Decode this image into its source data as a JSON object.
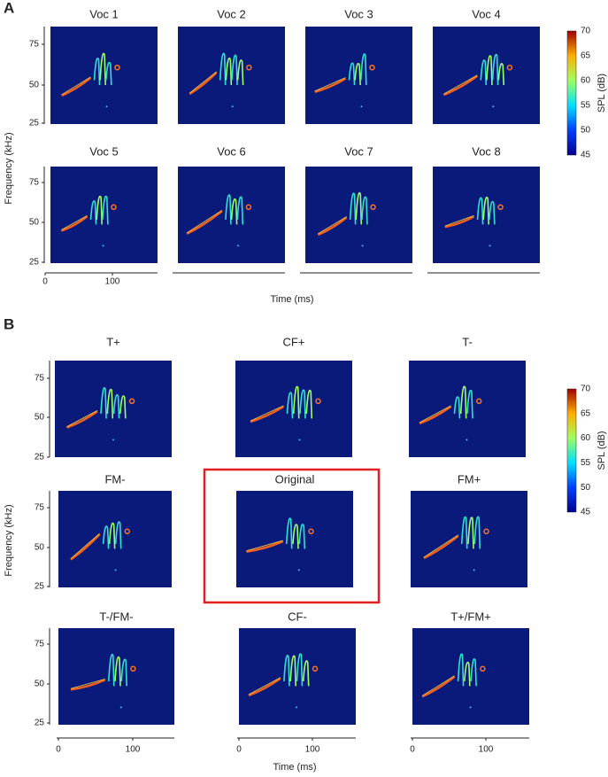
{
  "panel_a": {
    "label": "A",
    "y_label": "Frequency (kHz)",
    "x_label": "Time (ms)",
    "yticks": [
      "75",
      "50",
      "25"
    ],
    "xticks": [
      "0",
      "100"
    ],
    "plots": [
      "Voc 1",
      "Voc 2",
      "Voc 3",
      "Voc 4",
      "Voc 5",
      "Voc 6",
      "Voc 7",
      "Voc 8"
    ],
    "colorbar": {
      "label": "SPL (dB)",
      "ticks": [
        "70",
        "65",
        "60",
        "55",
        "50",
        "45"
      ]
    }
  },
  "panel_b": {
    "label": "B",
    "y_label": "Frequency (kHz)",
    "x_label": "Time (ms)",
    "yticks": [
      "75",
      "50",
      "25"
    ],
    "xticks": [
      "0",
      "100"
    ],
    "plots": [
      "T+",
      "CF+",
      "T-",
      "FM-",
      "Original",
      "FM+",
      "T-/FM-",
      "CF-",
      "T+/FM+"
    ],
    "colorbar": {
      "label": "SPL (dB)",
      "ticks": [
        "70",
        "65",
        "60",
        "55",
        "50",
        "45"
      ]
    }
  }
}
